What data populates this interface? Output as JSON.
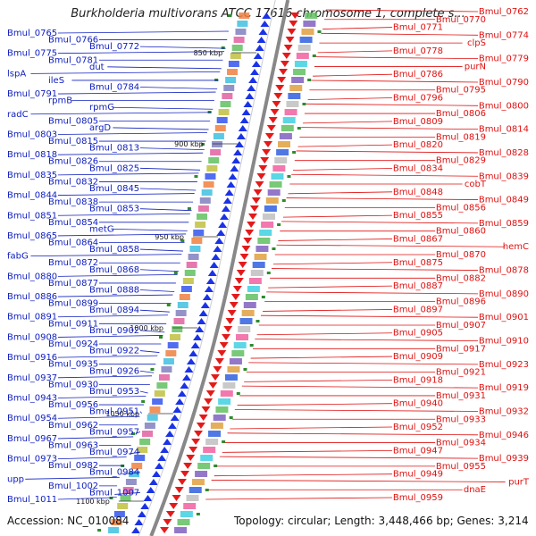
{
  "title": "Burkholderia multivorans ATCC 17616 chromosome 1, complete s...",
  "footer": {
    "accession": "Accession: NC_010084",
    "topology": "Topology: circular; Length: 3,448,466 bp; Genes: 3,214"
  },
  "colors": {
    "left_labels": "#1020c0",
    "right_labels": "#e01010",
    "backbone": "#888888",
    "tick_green": "#2e8b2e"
  },
  "scale_labels": [
    "850 kbp",
    "900 kbp",
    "950 kbp",
    "1000 kbp",
    "1050 kbp",
    "1100 kbp"
  ],
  "left_labels": [
    "Bmul_0765",
    "Bmul_0766",
    "Bmul_0772",
    "Bmul_0775",
    "Bmul_0781",
    "dut",
    "lspA",
    "ileS",
    "Bmul_0784",
    "Bmul_0791",
    "rpmB",
    "rpmG",
    "radC",
    "Bmul_0805",
    "argD",
    "Bmul_0803",
    "Bmul_0815",
    "Bmul_0813",
    "Bmul_0818",
    "Bmul_0826",
    "Bmul_0825",
    "Bmul_0835",
    "Bmul_0832",
    "Bmul_0845",
    "Bmul_0844",
    "Bmul_0838",
    "Bmul_0853",
    "Bmul_0851",
    "Bmul_0854",
    "metG",
    "Bmul_0865",
    "Bmul_0864",
    "Bmul_0858",
    "fabG",
    "Bmul_0872",
    "Bmul_0868",
    "Bmul_0880",
    "Bmul_0877",
    "Bmul_0888",
    "Bmul_0886",
    "Bmul_0899",
    "Bmul_0894",
    "Bmul_0891",
    "Bmul_0911",
    "Bmul_0902",
    "Bmul_0908",
    "Bmul_0924",
    "Bmul_0922",
    "Bmul_0916",
    "Bmul_0935",
    "Bmul_0926",
    "Bmul_0937",
    "Bmul_0930",
    "Bmul_0953",
    "Bmul_0943",
    "Bmul_0956",
    "Bmul_0951",
    "Bmul_0954",
    "Bmul_0962",
    "Bmul_0957",
    "Bmul_0967",
    "Bmul_0963",
    "Bmul_0974",
    "Bmul_0973",
    "Bmul_0982",
    "Bmul_0984",
    "upp",
    "Bmul_1002",
    "Bmul_1007",
    "Bmul_1011"
  ],
  "right_labels": [
    "Bmul_0762",
    "Bmul_0770",
    "Bmul_0771",
    "Bmul_0774",
    "clpS",
    "Bmul_0778",
    "Bmul_0779",
    "purN",
    "Bmul_0786",
    "Bmul_0790",
    "Bmul_0795",
    "Bmul_0796",
    "Bmul_0800",
    "Bmul_0806",
    "Bmul_0809",
    "Bmul_0814",
    "Bmul_0819",
    "Bmul_0820",
    "Bmul_0828",
    "Bmul_0829",
    "Bmul_0834",
    "Bmul_0839",
    "cobT",
    "Bmul_0848",
    "Bmul_0849",
    "Bmul_0856",
    "Bmul_0855",
    "Bmul_0859",
    "Bmul_0860",
    "Bmul_0867",
    "hemC",
    "Bmul_0870",
    "Bmul_0875",
    "Bmul_0878",
    "Bmul_0882",
    "Bmul_0887",
    "Bmul_0890",
    "Bmul_0896",
    "Bmul_0897",
    "Bmul_0901",
    "Bmul_0907",
    "Bmul_0905",
    "Bmul_0910",
    "Bmul_0917",
    "Bmul_0909",
    "Bmul_0923",
    "Bmul_0921",
    "Bmul_0918",
    "Bmul_0919",
    "Bmul_0931",
    "Bmul_0940",
    "Bmul_0932",
    "Bmul_0933",
    "Bmul_0952",
    "Bmul_0946",
    "Bmul_0934",
    "Bmul_0947",
    "Bmul_0939",
    "Bmul_0955",
    "Bmul_0949",
    "purT",
    "dnaE",
    "Bmul_0959"
  ]
}
